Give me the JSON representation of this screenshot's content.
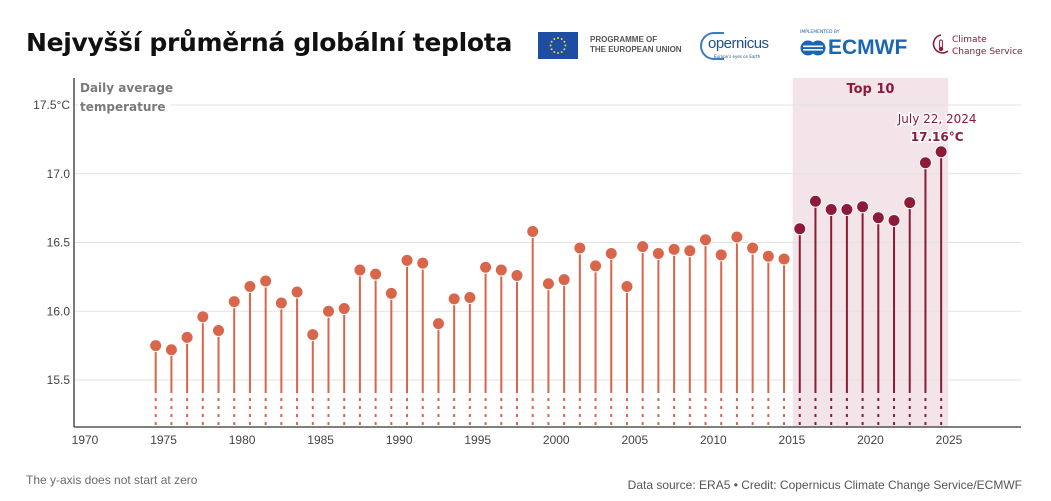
{
  "header": {
    "title": "Nejvyšší průměrná globální teplota",
    "logos": {
      "eu_line1": "PROGRAMME OF",
      "eu_line2": "THE EUROPEAN UNION",
      "copernicus": "opernicus",
      "copernicus_sub": "Europe's eyes on Earth",
      "ecmwf_small": "IMPLEMENTED BY",
      "ecmwf": "ECMWF",
      "c3s_line1": "Climate",
      "c3s_line2": "Change Service"
    }
  },
  "footer": {
    "note": "The y-axis does not start at zero",
    "source": "Data source: ERA5 • Credit: Copernicus Climate Change Service/ECMWF"
  },
  "colors": {
    "normal": "#d9654b",
    "top10": "#8e1a3a",
    "top10_band": "#f2e4e8",
    "grid": "#e3e3e3",
    "axis": "#333333"
  },
  "chart_data": {
    "type": "lollipop",
    "title": "Nejvyšší průměrná globální teplota",
    "ylabel": "Daily average temperature",
    "y_unit": "°C",
    "xlabel": "",
    "xlim": [
      1970,
      2030
    ],
    "ylim": [
      15.2,
      17.6
    ],
    "grid": true,
    "x_ticks": [
      1970,
      1975,
      1980,
      1985,
      1990,
      1995,
      2000,
      2005,
      2010,
      2015,
      2020,
      2025
    ],
    "y_ticks": [
      {
        "value": 15.5,
        "label": "15.5"
      },
      {
        "value": 16.0,
        "label": "16.0"
      },
      {
        "value": 16.5,
        "label": "16.5"
      },
      {
        "value": 17.0,
        "label": "17.0"
      },
      {
        "value": 17.5,
        "label": "17.5°C"
      }
    ],
    "highlight": {
      "label": "Top 10",
      "from_year": 2015,
      "to_year": 2024
    },
    "annotation": {
      "year": 2024,
      "date": "July 22, 2024",
      "value_label": "17.16°C"
    },
    "x": [
      1974,
      1975,
      1976,
      1977,
      1978,
      1979,
      1980,
      1981,
      1982,
      1983,
      1984,
      1985,
      1986,
      1987,
      1988,
      1989,
      1990,
      1991,
      1992,
      1993,
      1994,
      1995,
      1996,
      1997,
      1998,
      1999,
      2000,
      2001,
      2002,
      2003,
      2004,
      2005,
      2006,
      2007,
      2008,
      2009,
      2010,
      2011,
      2012,
      2013,
      2014,
      2015,
      2016,
      2017,
      2018,
      2019,
      2020,
      2021,
      2022,
      2023,
      2024
    ],
    "values": [
      15.75,
      15.72,
      15.81,
      15.96,
      15.86,
      16.07,
      16.18,
      16.22,
      16.06,
      16.14,
      15.83,
      16.0,
      16.02,
      16.3,
      16.27,
      16.13,
      16.37,
      16.35,
      15.91,
      16.09,
      16.1,
      16.32,
      16.3,
      16.26,
      16.58,
      16.2,
      16.23,
      16.46,
      16.33,
      16.42,
      16.18,
      16.47,
      16.42,
      16.45,
      16.44,
      16.52,
      16.41,
      16.54,
      16.46,
      16.4,
      16.38,
      16.6,
      16.8,
      16.74,
      16.74,
      16.76,
      16.68,
      16.66,
      16.79,
      17.08,
      17.16
    ]
  }
}
